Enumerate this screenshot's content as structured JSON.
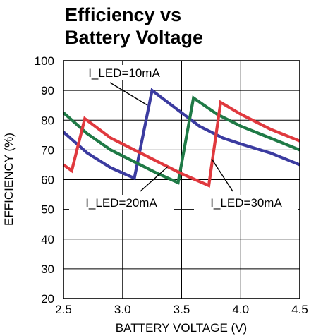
{
  "chart_data": {
    "type": "line",
    "title_lines": [
      "Efficiency vs",
      "Battery Voltage"
    ],
    "xlabel": "BATTERY VOLTAGE (V)",
    "ylabel": "EFFICIENCY (%)",
    "xlim": [
      2.5,
      4.5
    ],
    "ylim": [
      20,
      100
    ],
    "xticks": [
      "2.5",
      "3.0",
      "3.5",
      "4.0",
      "4.5"
    ],
    "yticks": [
      "20",
      "30",
      "40",
      "50",
      "60",
      "70",
      "80",
      "90",
      "100"
    ],
    "grid": true,
    "series": [
      {
        "name": "I_LED=10mA",
        "color": "#3b3ba0",
        "x": [
          2.5,
          2.7,
          2.9,
          3.1,
          3.25,
          3.45,
          3.65,
          3.85,
          4.0,
          4.25,
          4.5
        ],
        "y": [
          76,
          69,
          64,
          60.5,
          90,
          84,
          78,
          74,
          72,
          69,
          65
        ]
      },
      {
        "name": "I_LED=20mA",
        "color": "#1f7a46",
        "x": [
          2.5,
          2.7,
          2.9,
          3.1,
          3.3,
          3.47,
          3.6,
          3.8,
          4.0,
          4.25,
          4.5
        ],
        "y": [
          82.5,
          75.5,
          70,
          66,
          62,
          59,
          87.5,
          82,
          78,
          74,
          70
        ]
      },
      {
        "name": "I_LED=30mA",
        "color": "#e0393e",
        "x": [
          2.5,
          2.57,
          2.68,
          2.9,
          3.1,
          3.3,
          3.5,
          3.73,
          3.83,
          4.0,
          4.25,
          4.5
        ],
        "y": [
          65,
          63,
          80.5,
          74,
          70,
          66,
          62,
          58,
          86,
          82,
          77,
          73
        ]
      }
    ],
    "annotations": [
      {
        "text": "I_LED=10mA",
        "series": "I_LED=10mA"
      },
      {
        "text": "I_LED=20mA",
        "series": "I_LED=20mA"
      },
      {
        "text": "I_LED=30mA",
        "series": "I_LED=30mA"
      }
    ]
  }
}
